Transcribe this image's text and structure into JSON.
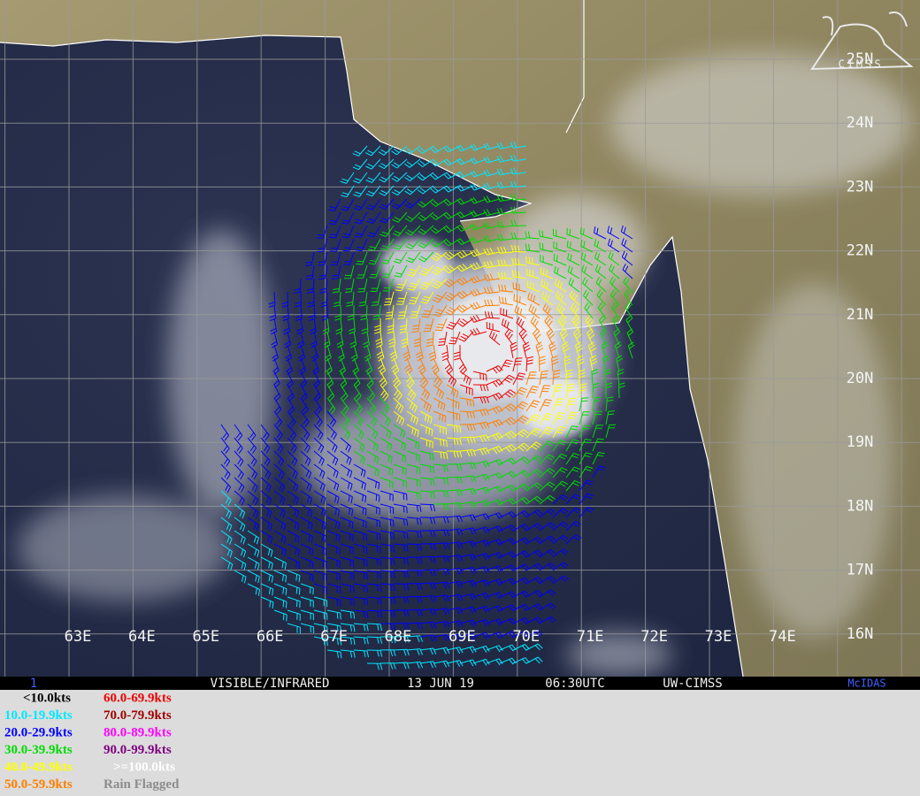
{
  "map": {
    "lon_labels": [
      "63E",
      "64E",
      "65E",
      "66E",
      "67E",
      "68E",
      "69E",
      "70E",
      "71E",
      "72E",
      "73E",
      "74E"
    ],
    "lat_labels": [
      "25N",
      "24N",
      "23N",
      "22N",
      "21N",
      "20N",
      "19N",
      "18N",
      "17N",
      "16N"
    ],
    "logo": "CIMSS"
  },
  "status_bar": {
    "frame": "1",
    "product": "VISIBLE/INFRARED",
    "date": "13 JUN 19",
    "time": "06:30UTC",
    "source": "UW-CIMSS",
    "software": "McIDAS"
  },
  "legend": [
    {
      "label": "<10.0kts",
      "color": "#000000"
    },
    {
      "label": "10.0-19.9kts",
      "color": "#00e8ff"
    },
    {
      "label": "20.0-29.9kts",
      "color": "#0000ff"
    },
    {
      "label": "30.0-39.9kts",
      "color": "#00dd00"
    },
    {
      "label": "40.0-49.9kts",
      "color": "#ffff00"
    },
    {
      "label": "50.0-59.9kts",
      "color": "#ff8000"
    },
    {
      "label": "60.0-69.9kts",
      "color": "#ee0000"
    },
    {
      "label": "70.0-79.9kts",
      "color": "#a00000"
    },
    {
      "label": "80.0-89.9kts",
      "color": "#ff00ff"
    },
    {
      "label": "90.0-99.9kts",
      "color": "#800080"
    },
    {
      "label": ">=100.0kts",
      "color": "#ffffff"
    },
    {
      "label": "Rain Flagged",
      "color": "#8c8c8c"
    }
  ]
}
